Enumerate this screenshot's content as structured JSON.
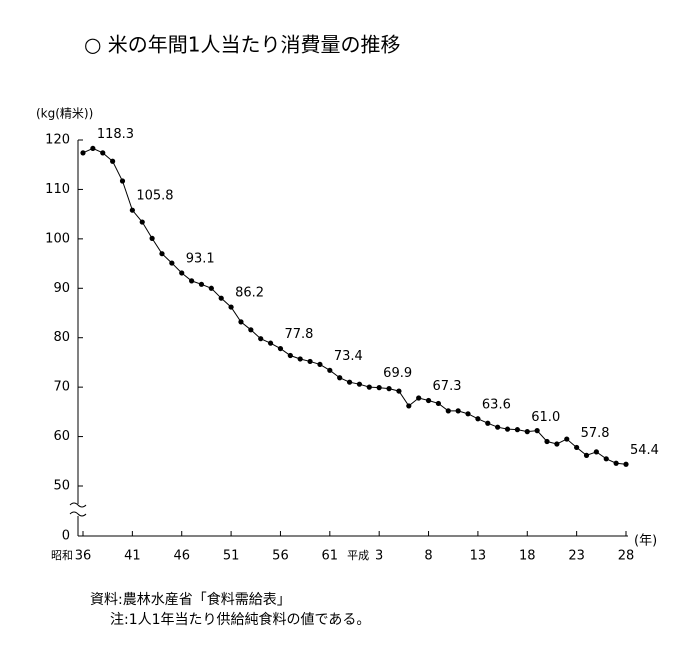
{
  "chart_data": {
    "type": "line",
    "title": "○ 米の年間1人当たり消費量の推移",
    "y_label": "(kg(精米))",
    "x_label": "(年)",
    "source": "資料:農林水産省「食料需給表」",
    "note": "注:1人1年当たり供給純食料の値である。",
    "category_prefixes": [
      "昭和",
      null,
      null,
      null,
      null,
      null,
      null,
      null,
      null,
      null,
      null,
      null,
      null,
      null,
      null,
      null,
      null,
      null,
      null,
      null,
      null,
      null,
      null,
      null,
      null,
      null,
      null,
      null,
      null,
      null,
      "平成",
      null,
      null,
      null,
      null,
      null,
      null,
      null,
      null,
      null,
      null,
      null,
      null,
      null,
      null,
      null,
      null,
      null,
      null,
      null,
      null,
      null,
      null,
      null,
      null,
      null
    ],
    "categories": [
      "36",
      null,
      null,
      null,
      null,
      "41",
      null,
      null,
      null,
      null,
      "46",
      null,
      null,
      null,
      null,
      "51",
      null,
      null,
      null,
      null,
      "56",
      null,
      null,
      null,
      null,
      "61",
      null,
      null,
      null,
      null,
      "3",
      null,
      null,
      null,
      null,
      "8",
      null,
      null,
      null,
      null,
      "13",
      null,
      null,
      null,
      null,
      "18",
      null,
      null,
      null,
      null,
      "23",
      null,
      null,
      null,
      null,
      "28"
    ],
    "values": [
      117.4,
      118.3,
      117.4,
      115.7,
      111.7,
      105.8,
      103.4,
      100.1,
      97.0,
      95.1,
      93.1,
      91.5,
      90.8,
      90.0,
      88.0,
      86.2,
      83.2,
      81.6,
      79.8,
      78.9,
      77.8,
      76.4,
      75.7,
      75.2,
      74.6,
      73.4,
      71.9,
      71.0,
      70.6,
      70.0,
      69.9,
      69.7,
      69.2,
      66.2,
      67.8,
      67.3,
      66.7,
      65.2,
      65.2,
      64.6,
      63.6,
      62.7,
      61.9,
      61.5,
      61.4,
      61.0,
      61.2,
      59.0,
      58.5,
      59.5,
      57.8,
      56.2,
      56.9,
      55.5,
      54.6,
      54.4
    ],
    "value_labels": [
      null,
      "118.3",
      null,
      null,
      null,
      "105.8",
      null,
      null,
      null,
      null,
      "93.1",
      null,
      null,
      null,
      null,
      "86.2",
      null,
      null,
      null,
      null,
      "77.8",
      null,
      null,
      null,
      null,
      "73.4",
      null,
      null,
      null,
      null,
      "69.9",
      null,
      null,
      null,
      null,
      "67.3",
      null,
      null,
      null,
      null,
      "63.6",
      null,
      null,
      null,
      null,
      "61.0",
      null,
      null,
      null,
      null,
      "57.8",
      null,
      null,
      null,
      null,
      "54.4"
    ],
    "color": "#000000",
    "ylim": [
      0,
      120
    ],
    "y_break": [
      0,
      50
    ],
    "yticks": [
      0,
      50,
      60,
      70,
      80,
      90,
      100,
      110,
      120
    ],
    "markers": true
  }
}
